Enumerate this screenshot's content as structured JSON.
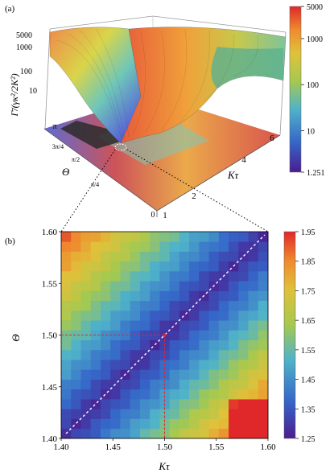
{
  "panel_a": {
    "label": "(a)",
    "z_axis_label": "Γ̄/(γκ²/2K²)",
    "z_ticks": [
      "5000",
      "1000",
      "100",
      "10"
    ],
    "theta_axis_label": "Θ",
    "theta_ticks": [
      "π",
      "3π/4",
      "π/2",
      "π/4",
      "0"
    ],
    "ktau_axis_label": "Kτ",
    "ktau_ticks": [
      "1",
      "2",
      "4",
      "6"
    ],
    "colorbar": {
      "ticks": [
        "5000",
        "1000",
        "100",
        "10",
        "1.251"
      ],
      "scale": "log",
      "min": 1.251,
      "max": 5000
    }
  },
  "panel_b": {
    "label": "(b)",
    "x_axis_label": "Kτ",
    "y_axis_label": "Θ",
    "x_ticks": [
      "1.40",
      "1.45",
      "1.50",
      "1.55",
      "1.60"
    ],
    "y_ticks": [
      "1.60",
      "1.55",
      "1.50",
      "1.45",
      "1.40"
    ],
    "colorbar": {
      "ticks": [
        "1.95",
        "1.85",
        "1.75",
        "1.65",
        "1.55",
        "1.45",
        "1.35",
        "1.25"
      ],
      "min": 1.25,
      "max": 1.95
    }
  },
  "chart_data": [
    {
      "type": "surface",
      "xlabel": "Kτ",
      "ylabel": "Θ",
      "zlabel": "Γ̄/(γκ²/2K²)",
      "xlim": [
        1,
        6
      ],
      "ylim": [
        0,
        3.1416
      ],
      "zscale": "log",
      "zlim": [
        1.251,
        5000
      ]
    },
    {
      "type": "heatmap",
      "xlabel": "Kτ",
      "ylabel": "Θ",
      "xlim": [
        1.4,
        1.6
      ],
      "ylim": [
        1.4,
        1.6
      ],
      "grid_size": 21,
      "value_range": [
        1.25,
        1.95
      ],
      "minimum_line": {
        "style": "dashed",
        "color": "#ffffff",
        "from": [
          1.4,
          1.4
        ],
        "to": [
          1.6,
          1.6
        ]
      },
      "marker": {
        "x": 1.5,
        "y": 1.5,
        "color": "#e0282a"
      }
    }
  ]
}
